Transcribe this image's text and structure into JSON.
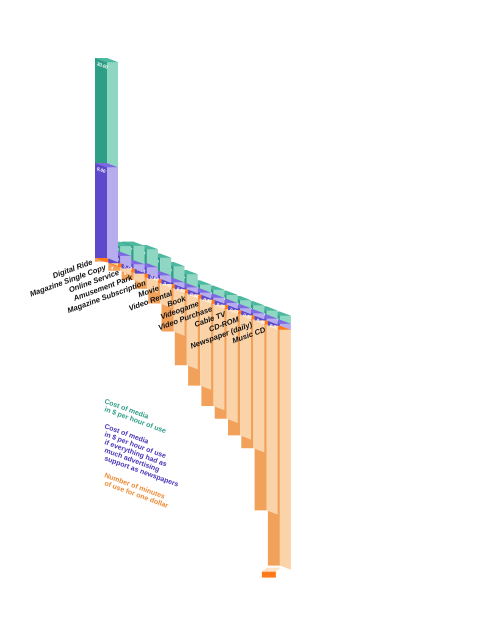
{
  "chart_data": {
    "type": "bar",
    "categories": [
      "Digital Ride",
      "Magazine Single Copy",
      "Online Service",
      "Amusement Park",
      "Magazine Subscription",
      "Movie",
      "Video Rental",
      "Book",
      "Videogame",
      "Video Purchase",
      "Cable TV",
      "CD-ROM",
      "Newspaper (daily)",
      "Music CD"
    ],
    "series": [
      {
        "name": "Cost of media in $ per hour of use",
        "color": "#2e9e86",
        "values": [
          30.0,
          1.63,
          3.07,
          3.0,
          2.93,
          2.66,
          2.17,
          1.31,
          1.13,
          1.0,
          0.9,
          0.87,
          0.6,
          0.13
        ]
      },
      {
        "name": "Cost of media in $ per hour of use if everything had as much advertising support as newspapers",
        "color": "#5d49c9",
        "values": [
          9.0,
          1.03,
          0.74,
          0.94,
          0.68,
          0.48,
          0.54,
          0.46,
          0.34,
          0.29,
          0.23,
          0.18,
          0.46,
          0.01
        ]
      },
      {
        "name": "Number of minutes of use for one dollar",
        "color": "#f2a15a",
        "values": [
          2,
          4,
          6,
          8,
          13,
          25,
          40,
          48,
          56,
          60,
          66,
          70,
          100,
          160
        ]
      }
    ],
    "value_labels": {
      "cost_per_hour": [
        "30.00",
        "1.63",
        "3.07",
        "3.00",
        "2.93",
        "2.66",
        "2.17",
        "1.31",
        "1.13",
        "1.00",
        "0.90",
        "0.87",
        "0.60",
        "0.13"
      ],
      "cost_with_advertising": [
        "9.00",
        "1.03",
        "0.74",
        "0.94",
        "0.68",
        "0.48",
        "0.54",
        "0.46",
        "0.34",
        "0.29",
        "0.23",
        "0.18",
        "0.46",
        "0.01"
      ],
      "minutes_per_dollar": [
        "2",
        "4",
        "6",
        "8",
        "13",
        "25",
        "40",
        "48",
        "56",
        "60",
        "66",
        "70",
        "100",
        "160"
      ]
    },
    "legend": {
      "placement": "center-left",
      "lines": [
        {
          "color": "#2e9e86",
          "text": [
            "Cost of media",
            "in $ per hour of use"
          ]
        },
        {
          "color": "#4936b8",
          "text": [
            "Cost of media",
            "in $ per hour of use",
            "if everything had as",
            "much advertising",
            "support as newspapers"
          ]
        },
        {
          "color": "#ee8a33",
          "text": [
            "Number of minutes",
            "of use for one dollar"
          ]
        }
      ]
    },
    "colors": {
      "teal_front": "#2e9e86",
      "teal_side": "#8fd6c3",
      "teal_top": "#4cb89f",
      "purple_front": "#5d49c9",
      "purple_side": "#b6acee",
      "purple_top": "#7b6ae0",
      "orange_front": "#f2a15a",
      "orange_side": "#fbd3a9",
      "orange_top": "#ff7a1a",
      "orange_bottom": "#fde2c4"
    },
    "grid": false
  }
}
